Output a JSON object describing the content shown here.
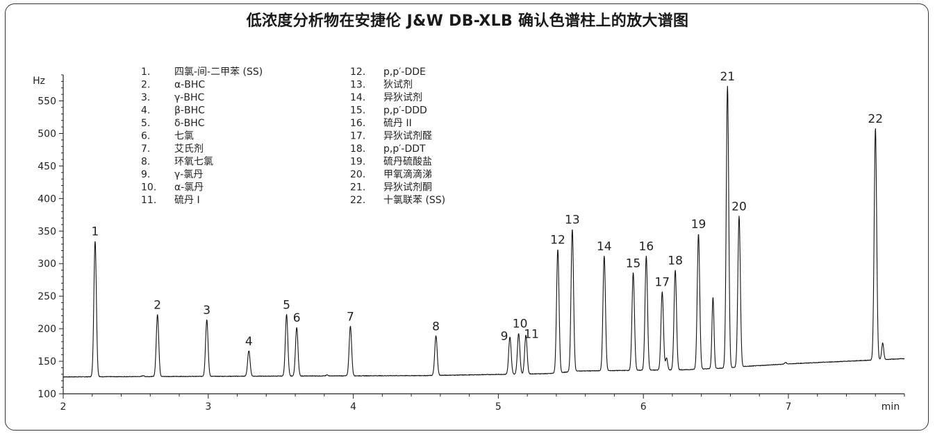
{
  "chart_data": {
    "type": "line",
    "title": "低浓度分析物在安捷伦 J&W DB-XLB 确认色谱柱上的放大谱图",
    "xlabel": "min",
    "ylabel": "Hz",
    "xlim": [
      2,
      7.8
    ],
    "ylim": [
      100,
      590
    ],
    "x_ticks": [
      2,
      3,
      4,
      5,
      6,
      7
    ],
    "y_ticks": [
      100,
      150,
      200,
      250,
      300,
      350,
      400,
      450,
      500,
      550
    ],
    "grid": false,
    "baseline": {
      "points": [
        [
          2.0,
          126
        ],
        [
          4.5,
          128
        ],
        [
          5.35,
          131
        ],
        [
          5.55,
          135
        ],
        [
          6.3,
          137
        ],
        [
          6.6,
          140
        ],
        [
          6.7,
          142
        ],
        [
          7.0,
          146
        ],
        [
          7.6,
          152
        ],
        [
          7.8,
          154
        ]
      ]
    },
    "peaks": [
      {
        "label": "1",
        "x": 2.22,
        "y": 335
      },
      {
        "label": "2",
        "x": 2.65,
        "y": 222
      },
      {
        "label": "3",
        "x": 2.99,
        "y": 214
      },
      {
        "label": "4",
        "x": 3.28,
        "y": 166
      },
      {
        "label": "5",
        "x": 3.54,
        "y": 222
      },
      {
        "label": "6",
        "x": 3.61,
        "y": 202
      },
      {
        "label": "7",
        "x": 3.98,
        "y": 204
      },
      {
        "label": "8",
        "x": 4.57,
        "y": 189
      },
      {
        "label": "9",
        "x": 5.08,
        "y": 187
      },
      {
        "label": "10",
        "x": 5.14,
        "y": 193
      },
      {
        "label": "11",
        "x": 5.19,
        "y": 190
      },
      {
        "label": "12",
        "x": 5.41,
        "y": 322
      },
      {
        "label": "13",
        "x": 5.51,
        "y": 353
      },
      {
        "label": "14",
        "x": 5.73,
        "y": 312
      },
      {
        "label": "15",
        "x": 5.93,
        "y": 286
      },
      {
        "label": "16",
        "x": 6.02,
        "y": 312
      },
      {
        "label": "17",
        "x": 6.13,
        "y": 257
      },
      {
        "label": "18",
        "x": 6.22,
        "y": 290
      },
      {
        "label": "19",
        "x": 6.38,
        "y": 346
      },
      {
        "label": "21",
        "x": 6.58,
        "y": 573
      },
      {
        "label": "20",
        "x": 6.66,
        "y": 373
      },
      {
        "label": "22",
        "x": 7.6,
        "y": 508
      }
    ],
    "minor_peaks": [
      {
        "x": 2.55,
        "y": 128
      },
      {
        "x": 3.82,
        "y": 129
      },
      {
        "x": 6.16,
        "y": 155
      },
      {
        "x": 6.48,
        "y": 248
      },
      {
        "x": 6.98,
        "y": 148
      },
      {
        "x": 7.65,
        "y": 178
      }
    ],
    "legend": [
      {
        "num": "1.",
        "name": "四氯-间-二甲苯 (SS)"
      },
      {
        "num": "2.",
        "name": "α-BHC"
      },
      {
        "num": "3.",
        "name": "γ-BHC"
      },
      {
        "num": "4.",
        "name": "β-BHC"
      },
      {
        "num": "5.",
        "name": "δ-BHC"
      },
      {
        "num": "6.",
        "name": "七氯"
      },
      {
        "num": "7.",
        "name": "艾氏剂"
      },
      {
        "num": "8.",
        "name": "环氧七氯"
      },
      {
        "num": "9.",
        "name": "γ-氯丹"
      },
      {
        "num": "10.",
        "name": "α-氯丹"
      },
      {
        "num": "11.",
        "name": "硫丹 I"
      },
      {
        "num": "12.",
        "name": "p,p′-DDE"
      },
      {
        "num": "13.",
        "name": "狄试剂"
      },
      {
        "num": "14.",
        "name": "异狄试剂"
      },
      {
        "num": "15.",
        "name": "p,p′-DDD"
      },
      {
        "num": "16.",
        "name": "硫丹 II"
      },
      {
        "num": "17.",
        "name": "异狄试剂醛"
      },
      {
        "num": "18.",
        "name": "p,p′-DDT"
      },
      {
        "num": "19.",
        "name": "硫丹硫酸盐"
      },
      {
        "num": "20.",
        "name": "甲氧滴滴涕"
      },
      {
        "num": "21.",
        "name": "异狄试剂酮"
      },
      {
        "num": "22.",
        "name": "十氯联苯 (SS)"
      }
    ]
  }
}
